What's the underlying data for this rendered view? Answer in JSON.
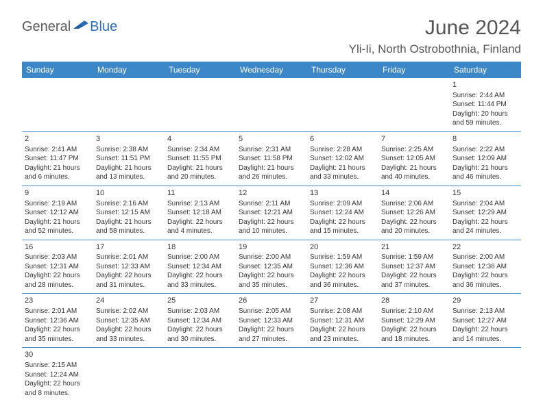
{
  "logo": {
    "part1": "General",
    "part2": "Blue"
  },
  "title": "June 2024",
  "location": "Yli-Ii, North Ostrobothnia, Finland",
  "colors": {
    "header_bg": "#3b87c8",
    "header_text": "#ffffff",
    "border": "#3b87c8",
    "text": "#333333",
    "logo_gray": "#5a5a5a",
    "logo_blue": "#2a6db8"
  },
  "weekdays": [
    "Sunday",
    "Monday",
    "Tuesday",
    "Wednesday",
    "Thursday",
    "Friday",
    "Saturday"
  ],
  "weeks": [
    [
      null,
      null,
      null,
      null,
      null,
      null,
      {
        "n": "1",
        "sr": "2:44 AM",
        "ss": "11:44 PM",
        "dl": "20 hours and 59 minutes."
      }
    ],
    [
      {
        "n": "2",
        "sr": "2:41 AM",
        "ss": "11:47 PM",
        "dl": "21 hours and 6 minutes."
      },
      {
        "n": "3",
        "sr": "2:38 AM",
        "ss": "11:51 PM",
        "dl": "21 hours and 13 minutes."
      },
      {
        "n": "4",
        "sr": "2:34 AM",
        "ss": "11:55 PM",
        "dl": "21 hours and 20 minutes."
      },
      {
        "n": "5",
        "sr": "2:31 AM",
        "ss": "11:58 PM",
        "dl": "21 hours and 26 minutes."
      },
      {
        "n": "6",
        "sr": "2:28 AM",
        "ss": "12:02 AM",
        "dl": "21 hours and 33 minutes."
      },
      {
        "n": "7",
        "sr": "2:25 AM",
        "ss": "12:05 AM",
        "dl": "21 hours and 40 minutes."
      },
      {
        "n": "8",
        "sr": "2:22 AM",
        "ss": "12:09 AM",
        "dl": "21 hours and 46 minutes."
      }
    ],
    [
      {
        "n": "9",
        "sr": "2:19 AM",
        "ss": "12:12 AM",
        "dl": "21 hours and 52 minutes."
      },
      {
        "n": "10",
        "sr": "2:16 AM",
        "ss": "12:15 AM",
        "dl": "21 hours and 58 minutes."
      },
      {
        "n": "11",
        "sr": "2:13 AM",
        "ss": "12:18 AM",
        "dl": "22 hours and 4 minutes."
      },
      {
        "n": "12",
        "sr": "2:11 AM",
        "ss": "12:21 AM",
        "dl": "22 hours and 10 minutes."
      },
      {
        "n": "13",
        "sr": "2:09 AM",
        "ss": "12:24 AM",
        "dl": "22 hours and 15 minutes."
      },
      {
        "n": "14",
        "sr": "2:06 AM",
        "ss": "12:26 AM",
        "dl": "22 hours and 20 minutes."
      },
      {
        "n": "15",
        "sr": "2:04 AM",
        "ss": "12:29 AM",
        "dl": "22 hours and 24 minutes."
      }
    ],
    [
      {
        "n": "16",
        "sr": "2:03 AM",
        "ss": "12:31 AM",
        "dl": "22 hours and 28 minutes."
      },
      {
        "n": "17",
        "sr": "2:01 AM",
        "ss": "12:33 AM",
        "dl": "22 hours and 31 minutes."
      },
      {
        "n": "18",
        "sr": "2:00 AM",
        "ss": "12:34 AM",
        "dl": "22 hours and 33 minutes."
      },
      {
        "n": "19",
        "sr": "2:00 AM",
        "ss": "12:35 AM",
        "dl": "22 hours and 35 minutes."
      },
      {
        "n": "20",
        "sr": "1:59 AM",
        "ss": "12:36 AM",
        "dl": "22 hours and 36 minutes."
      },
      {
        "n": "21",
        "sr": "1:59 AM",
        "ss": "12:37 AM",
        "dl": "22 hours and 37 minutes."
      },
      {
        "n": "22",
        "sr": "2:00 AM",
        "ss": "12:36 AM",
        "dl": "22 hours and 36 minutes."
      }
    ],
    [
      {
        "n": "23",
        "sr": "2:01 AM",
        "ss": "12:36 AM",
        "dl": "22 hours and 35 minutes."
      },
      {
        "n": "24",
        "sr": "2:02 AM",
        "ss": "12:35 AM",
        "dl": "22 hours and 33 minutes."
      },
      {
        "n": "25",
        "sr": "2:03 AM",
        "ss": "12:34 AM",
        "dl": "22 hours and 30 minutes."
      },
      {
        "n": "26",
        "sr": "2:05 AM",
        "ss": "12:33 AM",
        "dl": "22 hours and 27 minutes."
      },
      {
        "n": "27",
        "sr": "2:08 AM",
        "ss": "12:31 AM",
        "dl": "22 hours and 23 minutes."
      },
      {
        "n": "28",
        "sr": "2:10 AM",
        "ss": "12:29 AM",
        "dl": "22 hours and 18 minutes."
      },
      {
        "n": "29",
        "sr": "2:13 AM",
        "ss": "12:27 AM",
        "dl": "22 hours and 14 minutes."
      }
    ],
    [
      {
        "n": "30",
        "sr": "2:15 AM",
        "ss": "12:24 AM",
        "dl": "22 hours and 8 minutes."
      },
      null,
      null,
      null,
      null,
      null,
      null
    ]
  ],
  "labels": {
    "sunrise": "Sunrise:",
    "sunset": "Sunset:",
    "daylight": "Daylight:"
  }
}
